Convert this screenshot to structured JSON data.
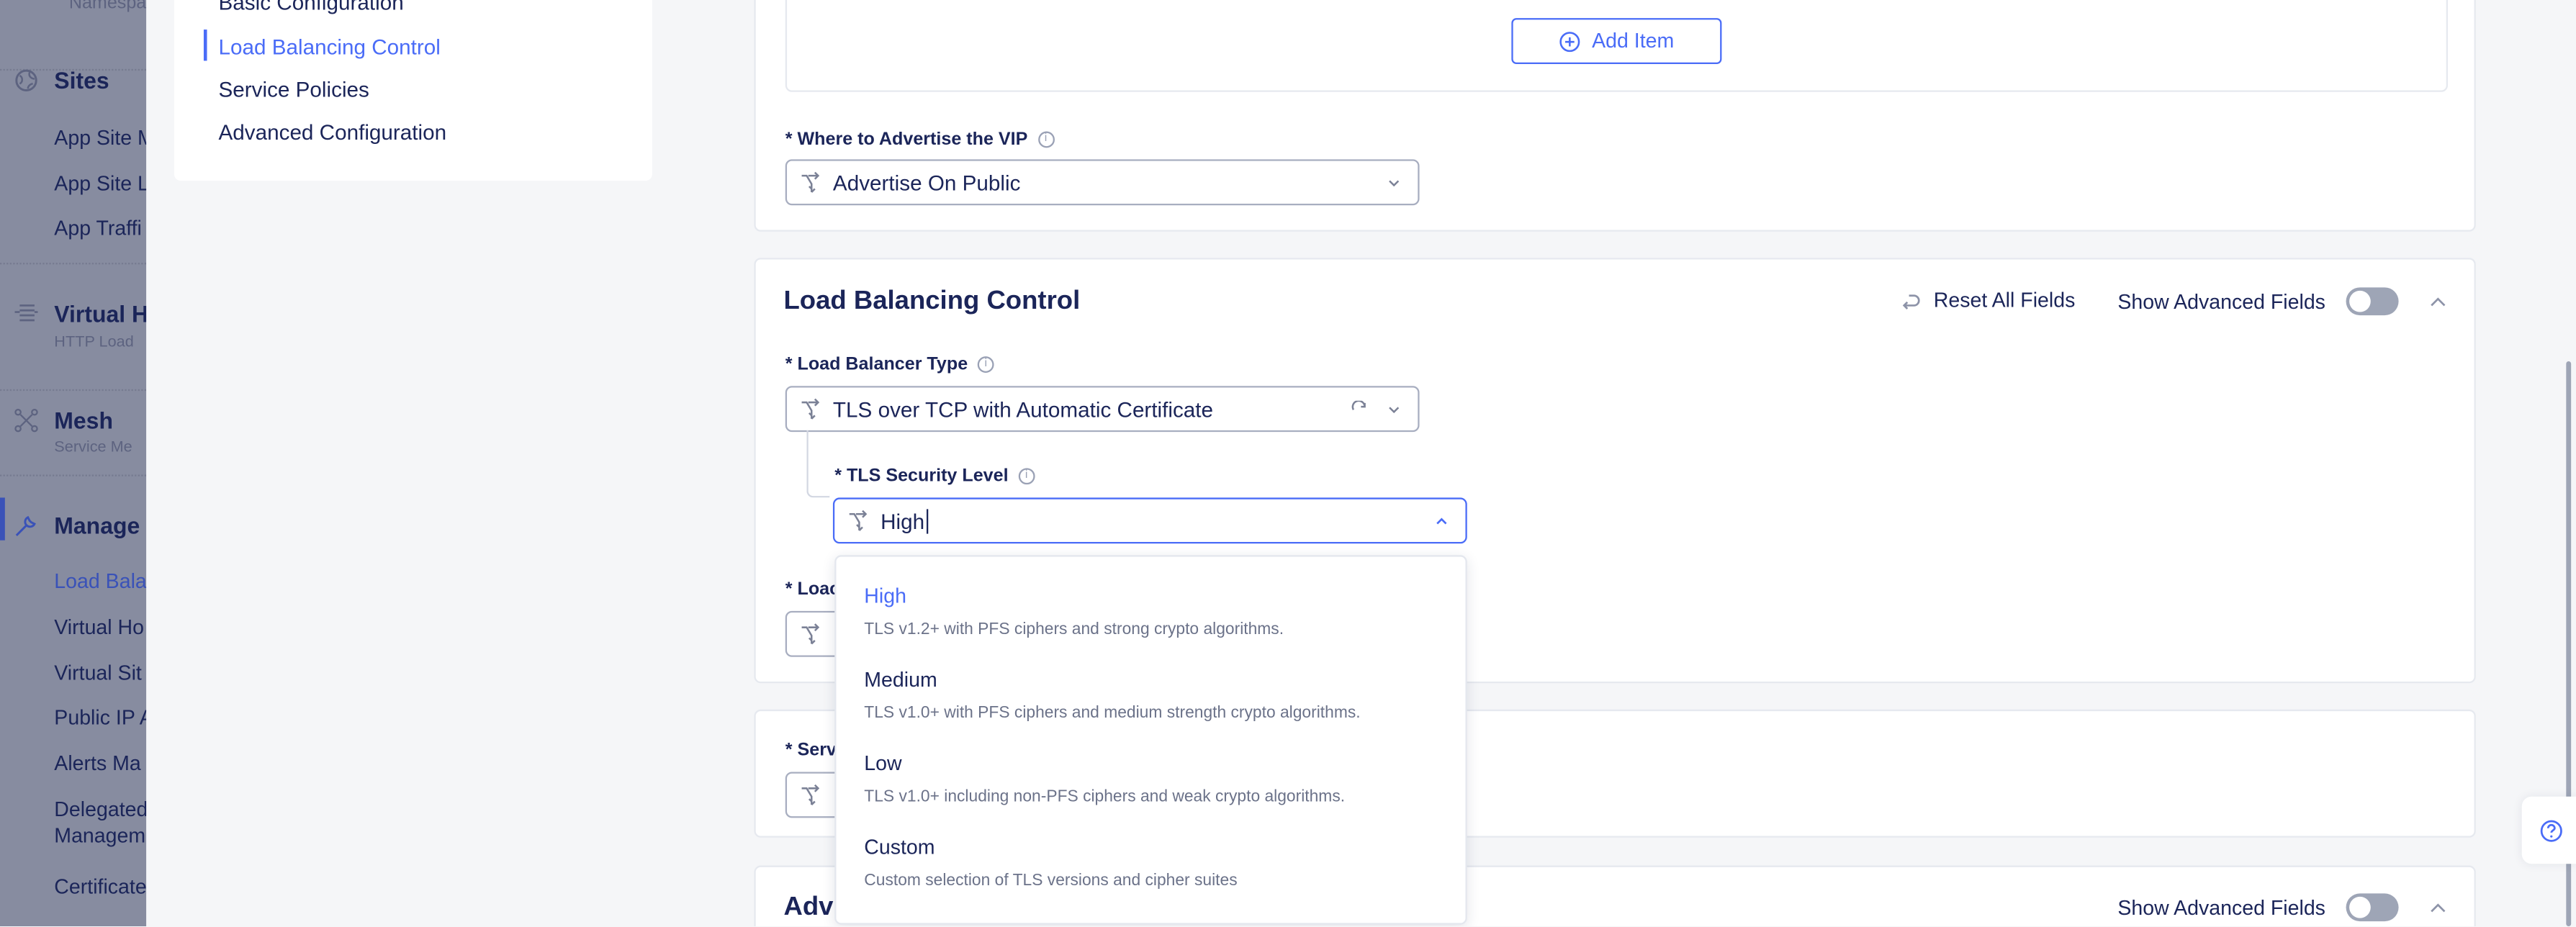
{
  "nav": {
    "namespace_label": "Namespa",
    "sections": [
      {
        "title": "Sites",
        "icon": "globe-icon",
        "items": [
          "App Site M",
          "App Site L",
          "App Traffi"
        ]
      },
      {
        "title": "Virtual H",
        "subtitle": "HTTP Load",
        "icon": "load-balancer-icon"
      },
      {
        "title": "Mesh",
        "subtitle": "Service Me",
        "icon": "mesh-icon"
      },
      {
        "title": "Manage",
        "icon": "wrench-icon",
        "items": [
          "Load Bala",
          "Virtual Ho",
          "Virtual Sit",
          "Public IP A",
          "Alerts Ma",
          "Delegated",
          "Managem",
          "Certificate"
        ]
      }
    ]
  },
  "toc": {
    "items": [
      "Basic Configuration",
      "Load Balancing Control",
      "Service Policies",
      "Advanced Configuration"
    ],
    "active": "Load Balancing Control"
  },
  "top_card": {
    "add_item_label": "Add Item",
    "advertise_label": "* Where to Advertise the VIP",
    "advertise_value": "Advertise On Public"
  },
  "lb_control": {
    "title": "Load Balancing Control",
    "reset_label": "Reset All Fields",
    "show_advanced_label": "Show Advanced Fields",
    "show_advanced_on": false,
    "lb_type_label": "* Load Balancer Type",
    "lb_type_value": "TLS over TCP with Automatic Certificate",
    "tls_level_label": "* TLS Security Level",
    "tls_level_value": "High",
    "next_label_partial": "* Loac"
  },
  "service_card": {
    "label_partial": "* Serv"
  },
  "advanced_card": {
    "title_partial": "Adv",
    "show_advanced_label": "Show Advanced Fields",
    "show_advanced_on": false
  },
  "dropdown": {
    "options": [
      {
        "name": "High",
        "desc": "TLS v1.2+ with PFS ciphers and strong crypto algorithms."
      },
      {
        "name": "Medium",
        "desc": "TLS v1.0+ with PFS ciphers and medium strength crypto algorithms."
      },
      {
        "name": "Low",
        "desc": "TLS v1.0+ including non-PFS ciphers and weak crypto algorithms."
      },
      {
        "name": "Custom",
        "desc": "Custom selection of TLS versions and cipher suites"
      }
    ],
    "selected": "High"
  },
  "colors": {
    "accent": "#4a6cf7",
    "text": "#1b2559",
    "nav_overlay": "#878ca0"
  }
}
